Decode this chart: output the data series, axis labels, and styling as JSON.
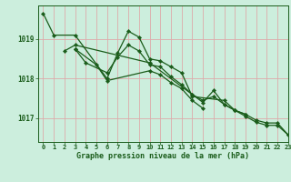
{
  "title": "",
  "xlabel": "Graphe pression niveau de la mer (hPa)",
  "ylabel": "",
  "bg_color": "#cceedd",
  "grid_color": "#ddaaaa",
  "line_color": "#1a5c1a",
  "xlim": [
    -0.5,
    23
  ],
  "ylim": [
    1016.4,
    1019.85
  ],
  "yticks": [
    1017,
    1018,
    1019
  ],
  "xticks": [
    0,
    1,
    2,
    3,
    4,
    5,
    6,
    7,
    8,
    9,
    10,
    11,
    12,
    13,
    14,
    15,
    16,
    17,
    18,
    19,
    20,
    21,
    22,
    23
  ],
  "series": [
    {
      "x": [
        0,
        1,
        3,
        6,
        7,
        8,
        9,
        10,
        11,
        12,
        13,
        14,
        17,
        18,
        19,
        20,
        21,
        22,
        23
      ],
      "y": [
        1019.65,
        1019.1,
        1019.1,
        1018.0,
        1018.65,
        1019.2,
        1019.05,
        1018.5,
        1018.45,
        1018.3,
        1018.15,
        1017.55,
        1017.45,
        1017.2,
        1017.1,
        1016.95,
        1016.88,
        1016.88,
        1016.58
      ]
    },
    {
      "x": [
        3,
        4,
        6,
        7,
        8,
        9,
        10,
        11,
        12,
        13,
        14,
        15,
        16,
        17,
        18,
        19,
        20,
        21,
        22,
        23
      ],
      "y": [
        1018.75,
        1018.4,
        1018.15,
        1018.55,
        1018.85,
        1018.7,
        1018.35,
        1018.3,
        1018.05,
        1017.85,
        1017.6,
        1017.45,
        1017.55,
        1017.35,
        1017.2,
        1017.05,
        1016.9,
        1016.82,
        1016.82,
        1016.58
      ]
    },
    {
      "x": [
        2,
        3,
        10,
        14,
        15,
        16,
        17,
        18,
        19
      ],
      "y": [
        1018.7,
        1018.85,
        1018.4,
        1017.6,
        1017.4,
        1017.7,
        1017.35,
        1017.2,
        1017.1
      ]
    },
    {
      "x": [
        3,
        5,
        6,
        10,
        11,
        12,
        13,
        14,
        15
      ],
      "y": [
        1018.75,
        1018.35,
        1017.95,
        1018.2,
        1018.1,
        1017.9,
        1017.75,
        1017.45,
        1017.25
      ]
    }
  ]
}
